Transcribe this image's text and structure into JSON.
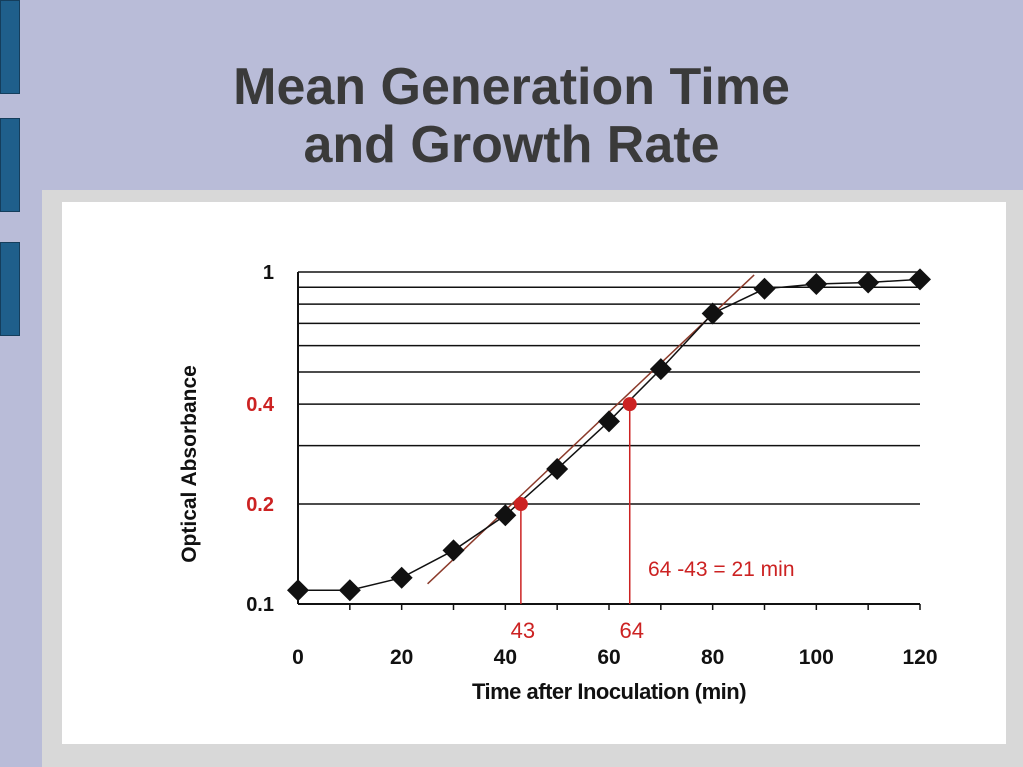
{
  "slide": {
    "title_line1": "Mean Generation Time",
    "title_line2": "and Growth Rate"
  },
  "colors": {
    "background": "#b9bcd8",
    "accent_bar": "#1f5f8b",
    "title": "#3a3a3a",
    "annotation_red": "#cc2222",
    "fit_line": "#8b3a2a"
  },
  "chart_data": {
    "type": "scatter",
    "xlabel": "Time after Inoculation (min)",
    "ylabel": "Optical Absorbance",
    "xlim": [
      0,
      120
    ],
    "ylim": [
      0.1,
      1
    ],
    "y_scale": "log",
    "grid": "horizontal",
    "x_ticks": [
      "0",
      "20",
      "40",
      "60",
      "80",
      "100",
      "120"
    ],
    "x_tick_values": [
      0,
      20,
      40,
      60,
      80,
      100,
      120
    ],
    "y_ticks": [
      {
        "value": 1,
        "label": "1",
        "color": "#111111"
      },
      {
        "value": 0.4,
        "label": "0.4",
        "color": "#cc2222"
      },
      {
        "value": 0.2,
        "label": "0.2",
        "color": "#cc2222"
      },
      {
        "value": 0.1,
        "label": "0.1",
        "color": "#111111"
      }
    ],
    "grid_values": [
      0.2,
      0.3,
      0.4,
      0.5,
      0.6,
      0.7,
      0.8,
      0.9,
      1
    ],
    "series": [
      {
        "marker": "diamond",
        "x": [
          0,
          10,
          20,
          30,
          40,
          50,
          60,
          70,
          80,
          90,
          100,
          110,
          120
        ],
        "y": [
          0.11,
          0.11,
          0.12,
          0.145,
          0.185,
          0.255,
          0.355,
          0.51,
          0.75,
          0.89,
          0.92,
          0.93,
          0.95
        ]
      }
    ],
    "fit_line": {
      "x": [
        25,
        88
      ],
      "y": [
        0.115,
        0.98
      ]
    },
    "highlight_points": [
      {
        "x": 43,
        "y": 0.2,
        "label": "43"
      },
      {
        "x": 64,
        "y": 0.4,
        "label": "64"
      }
    ],
    "annotation": "64 -43 = 21 min"
  }
}
